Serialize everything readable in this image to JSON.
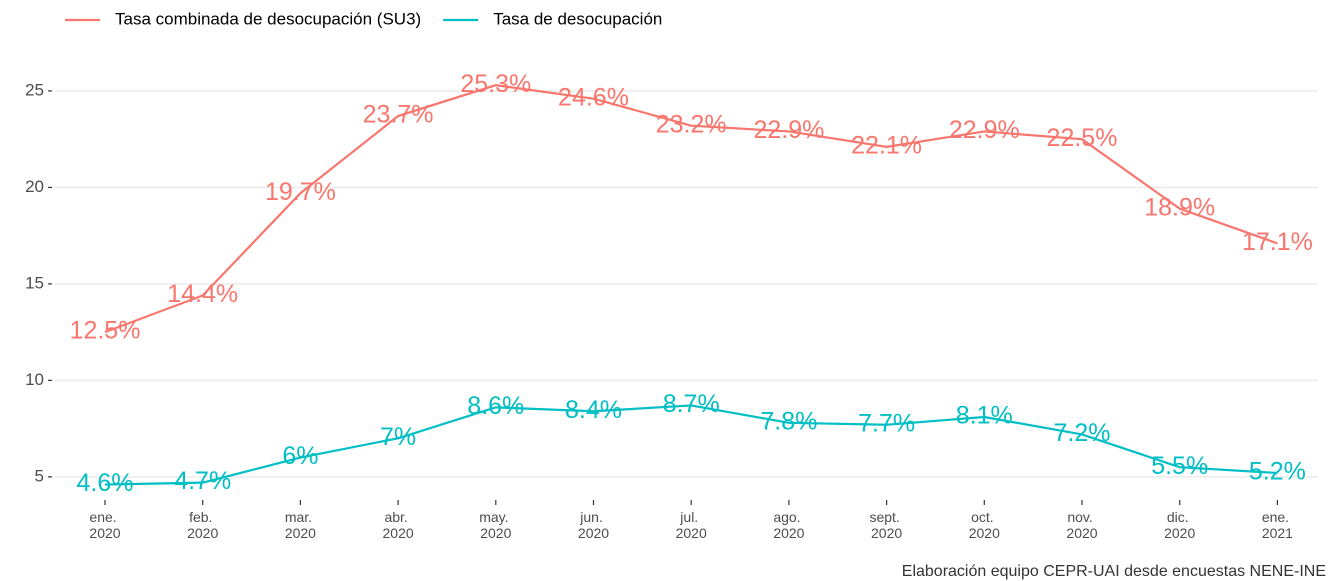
{
  "chart_data": {
    "type": "line",
    "categories": [
      "ene. 2020",
      "feb. 2020",
      "mar. 2020",
      "abr. 2020",
      "may. 2020",
      "jun. 2020",
      "jul. 2020",
      "ago. 2020",
      "sept. 2020",
      "oct. 2020",
      "nov. 2020",
      "dic. 2020",
      "ene. 2021"
    ],
    "series": [
      {
        "name": "Tasa combinada de desocupación (SU3)",
        "color": "#f8766d",
        "values": [
          12.5,
          14.4,
          19.7,
          23.7,
          25.3,
          24.6,
          23.2,
          22.9,
          22.1,
          22.9,
          22.5,
          18.9,
          17.1
        ],
        "value_labels": [
          "12.5%",
          "14.4%",
          "19.7%",
          "23.7%",
          "25.3%",
          "24.6%",
          "23.2%",
          "22.9%",
          "22.1%",
          "22.9%",
          "22.5%",
          "18.9%",
          "17.1%"
        ]
      },
      {
        "name": "Tasa de desocupación",
        "color": "#00bfc4",
        "values": [
          4.6,
          4.7,
          6,
          7,
          8.6,
          8.4,
          8.7,
          7.8,
          7.7,
          8.1,
          7.2,
          5.5,
          5.2
        ],
        "value_labels": [
          "4.6%",
          "4.7%",
          "6%",
          "7%",
          "8.6%",
          "8.4%",
          "8.7%",
          "7.8%",
          "7.7%",
          "8.1%",
          "7.2%",
          "5.5%",
          "5.2%"
        ]
      }
    ],
    "ylim": [
      3.8,
      26.5
    ],
    "yticks": [
      5,
      10,
      15,
      20,
      25
    ],
    "grid": true,
    "legend": "top-left",
    "caption": "Elaboración equipo CEPR-UAI desde encuestas NENE-INE"
  }
}
